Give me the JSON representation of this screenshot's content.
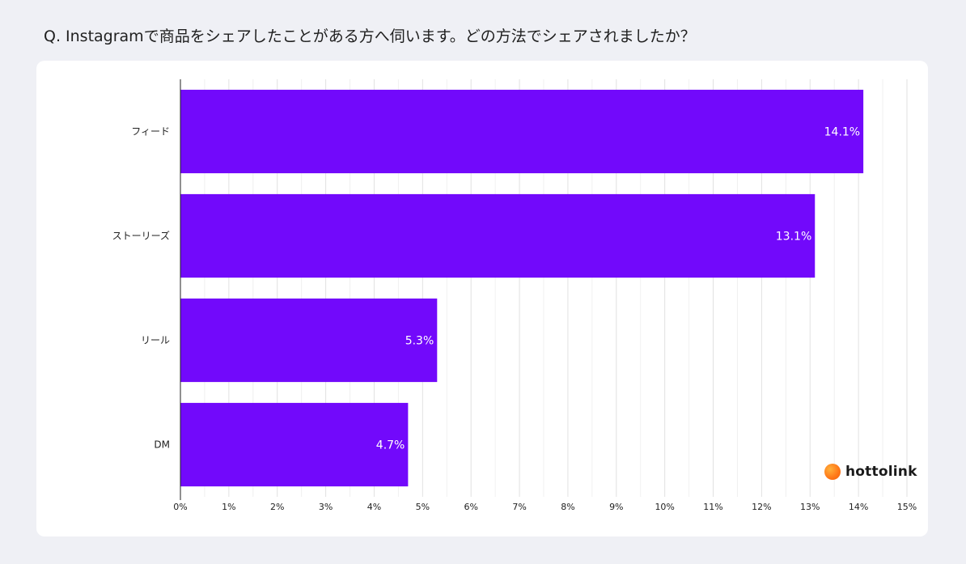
{
  "title": "Q. Instagramで商品をシェアしたことがある方へ伺います。どの方法でシェアされましたか？",
  "brand": {
    "name": "hottolink",
    "icon": "orange-circle-logo"
  },
  "colors": {
    "bar": "#7209fb",
    "background": "#eff0f5",
    "card": "#ffffff",
    "grid": "#e6e6e6"
  },
  "chart_data": {
    "type": "bar",
    "orientation": "horizontal",
    "categories": [
      "フィード",
      "ストーリーズ",
      "リール",
      "DM"
    ],
    "values": [
      14.1,
      13.1,
      5.3,
      4.7
    ],
    "value_labels": [
      "14.1%",
      "13.1%",
      "5.3%",
      "4.7%"
    ],
    "xlim": [
      0,
      15
    ],
    "x_ticks": [
      "0%",
      "1%",
      "2%",
      "3%",
      "4%",
      "5%",
      "6%",
      "7%",
      "8%",
      "9%",
      "10%",
      "11%",
      "12%",
      "13%",
      "14%",
      "15%"
    ],
    "grid": true,
    "legend": "none"
  }
}
